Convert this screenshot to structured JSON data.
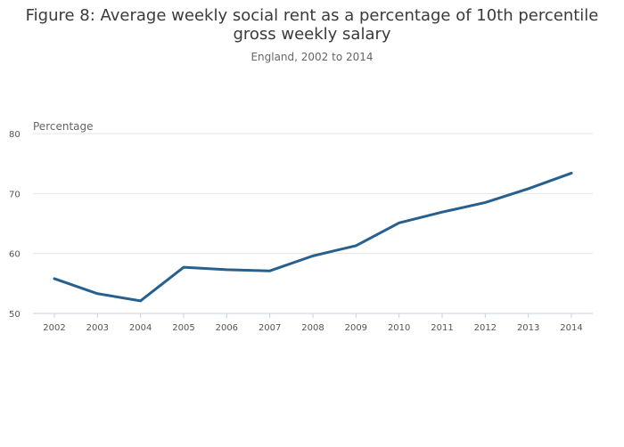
{
  "chart_data": {
    "type": "line",
    "title_lines": [
      "Figure 8: Average weekly social rent as a percentage of 10th percentile",
      "gross weekly salary"
    ],
    "subtitle": "England, 2002 to 2014",
    "ylabel": "Percentage",
    "xlabel": "",
    "ylim": [
      50,
      80
    ],
    "yticks": [
      50,
      60,
      70,
      80
    ],
    "grid": true,
    "legend": "none",
    "categories": [
      "2002",
      "2003",
      "2004",
      "2005",
      "2006",
      "2007",
      "2008",
      "2009",
      "2010",
      "2011",
      "2012",
      "2013",
      "2014"
    ],
    "series": [
      {
        "color": "#27608f",
        "values": [
          55.8,
          53.3,
          52.1,
          57.7,
          57.3,
          57.1,
          59.6,
          61.3,
          65.1,
          66.9,
          68.5,
          70.8,
          73.4
        ]
      }
    ]
  }
}
